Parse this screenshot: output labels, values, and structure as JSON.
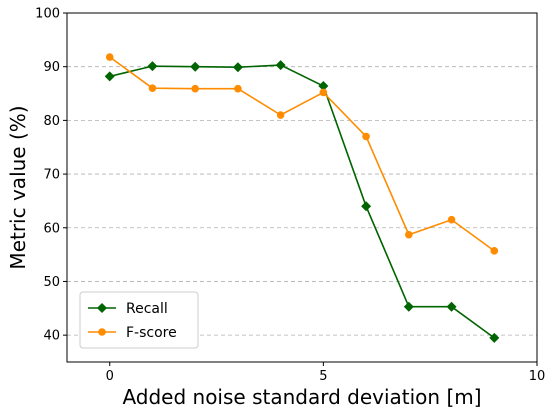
{
  "chart_data": {
    "type": "line",
    "xlabel": "Added noise standard deviation [m]",
    "ylabel": "Metric value (%)",
    "xlim": [
      -1,
      10
    ],
    "ylim": [
      35,
      100
    ],
    "xticks": [
      0,
      5,
      10
    ],
    "yticks": [
      40,
      50,
      60,
      70,
      80,
      90,
      100
    ],
    "grid": "y-dashed",
    "legend_position": "bottom-left",
    "series": [
      {
        "name": "Recall",
        "color": "#006400",
        "marker": "diamond",
        "x": [
          0,
          1,
          2,
          3,
          4,
          5,
          6,
          7,
          8,
          9
        ],
        "y": [
          88.2,
          90.1,
          90.0,
          89.9,
          90.3,
          86.4,
          64.0,
          45.3,
          45.3,
          39.5
        ]
      },
      {
        "name": "F-score",
        "color": "#FF8C00",
        "marker": "circle",
        "x": [
          0,
          1,
          2,
          3,
          4,
          5,
          6,
          7,
          8,
          9
        ],
        "y": [
          91.8,
          86.0,
          85.9,
          85.9,
          81.0,
          85.2,
          77.0,
          58.7,
          61.5,
          55.7
        ]
      }
    ]
  }
}
